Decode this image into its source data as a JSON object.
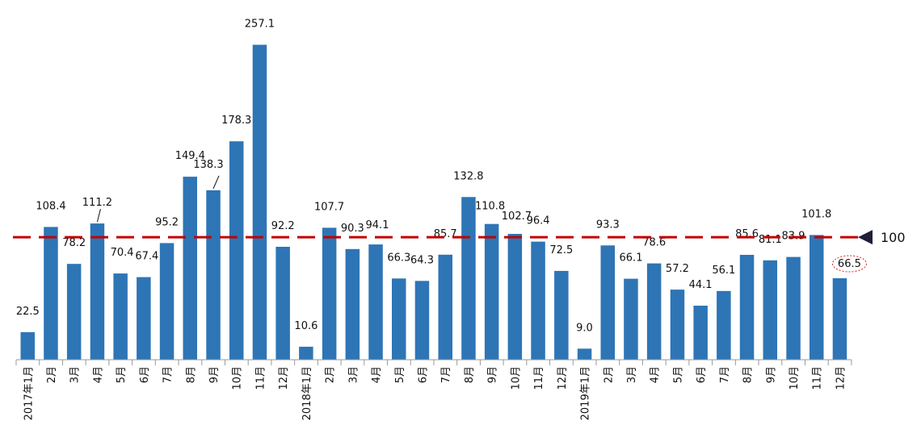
{
  "chart_data": {
    "type": "bar",
    "categories": [
      "2017年1月",
      "2月",
      "3月",
      "4月",
      "5月",
      "6月",
      "7月",
      "8月",
      "9月",
      "10月",
      "11月",
      "12月",
      "2018年1月",
      "2月",
      "3月",
      "4月",
      "5月",
      "6月",
      "7月",
      "8月",
      "9月",
      "10月",
      "11月",
      "12月",
      "2019年1月",
      "2月",
      "3月",
      "4月",
      "5月",
      "6月",
      "7月",
      "8月",
      "9月",
      "10月",
      "11月",
      "12月"
    ],
    "values": [
      22.5,
      108.4,
      78.2,
      111.2,
      70.4,
      67.4,
      95.2,
      149.4,
      138.3,
      178.3,
      257.1,
      92.2,
      10.6,
      107.7,
      90.3,
      94.1,
      66.3,
      64.3,
      85.7,
      132.8,
      110.8,
      102.7,
      96.4,
      72.5,
      9.0,
      93.3,
      66.1,
      78.6,
      57.2,
      44.1,
      56.1,
      85.6,
      81.1,
      83.9,
      101.8,
      66.5
    ],
    "value_labels": [
      "22.5",
      "108.4",
      "78.2",
      "111.2",
      "70.4",
      "67.4",
      "95.2",
      "149.4",
      "138.3",
      "178.3",
      "257.1",
      "92.2",
      "10.6",
      "107.7",
      "90.3",
      "94.1",
      "66.3",
      "64.3",
      "85.7",
      "132.8",
      "110.8",
      "102.7",
      "96.4",
      "72.5",
      "9.0",
      "93.3",
      "66.1",
      "78.6",
      "57.2",
      "44.1",
      "56.1",
      "85.6",
      "81.1",
      "83.9",
      "101.8",
      "66.5"
    ],
    "ylim": [
      0,
      280
    ],
    "reference_line": {
      "value": 100,
      "label": "100",
      "color": "#c00000"
    },
    "highlighted_index": 35,
    "bar_color": "#2e75b6",
    "grid": false,
    "legend": "none"
  }
}
